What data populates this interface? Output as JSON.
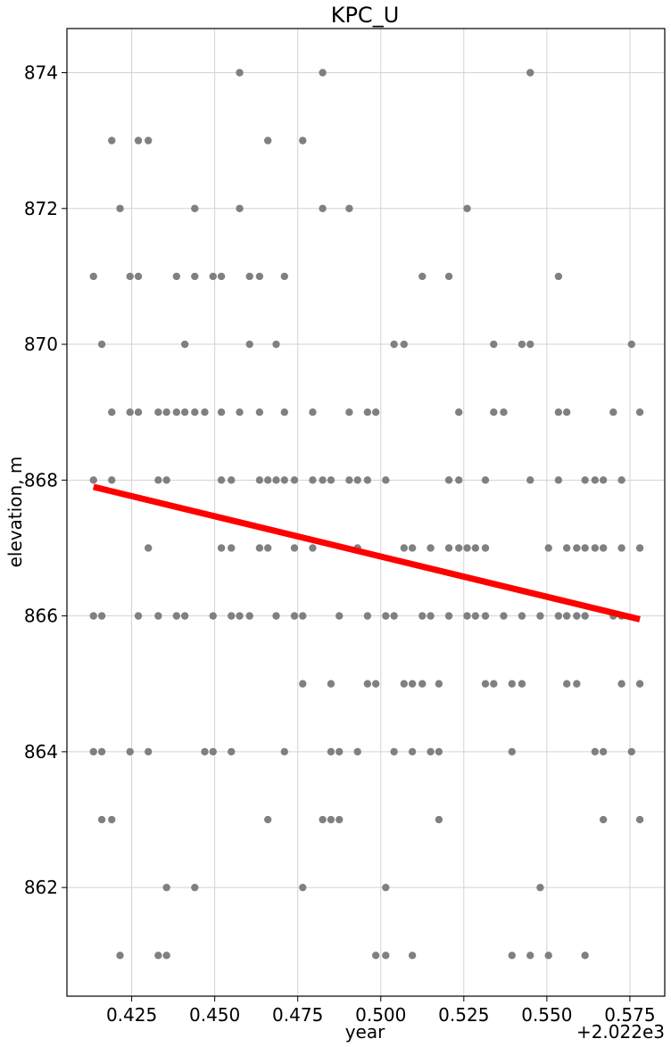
{
  "chart_data": {
    "type": "scatter",
    "title": "KPC_U",
    "xlabel": "year",
    "ylabel": "elevation, m",
    "x_offset_label": "+2.022e3",
    "x_offset": 2022,
    "xlim": [
      2022.4055,
      2022.5855
    ],
    "ylim": [
      860.4,
      874.65
    ],
    "xticks": [
      2022.425,
      2022.45,
      2022.475,
      2022.5,
      2022.525,
      2022.55,
      2022.575
    ],
    "xtick_labels": [
      "0.425",
      "0.450",
      "0.475",
      "0.500",
      "0.525",
      "0.550",
      "0.575"
    ],
    "yticks": [
      862,
      864,
      866,
      868,
      870,
      872,
      874
    ],
    "ytick_labels": [
      "862",
      "864",
      "866",
      "868",
      "870",
      "872",
      "874"
    ],
    "grid": true,
    "legend": "none",
    "colors": {
      "points": "#808080",
      "trend": "#ff0000",
      "grid": "#d3d3d3",
      "axes": "#000000"
    },
    "series": [
      {
        "type": "scatter",
        "points": [
          [
            2022.4135,
            871
          ],
          [
            2022.4135,
            868
          ],
          [
            2022.4135,
            866
          ],
          [
            2022.4135,
            864
          ],
          [
            2022.416,
            870
          ],
          [
            2022.416,
            866
          ],
          [
            2022.416,
            864
          ],
          [
            2022.416,
            863
          ],
          [
            2022.419,
            873
          ],
          [
            2022.419,
            869
          ],
          [
            2022.419,
            868
          ],
          [
            2022.419,
            863
          ],
          [
            2022.4215,
            872
          ],
          [
            2022.4215,
            861
          ],
          [
            2022.4245,
            871
          ],
          [
            2022.4245,
            869
          ],
          [
            2022.4245,
            864
          ],
          [
            2022.427,
            873
          ],
          [
            2022.427,
            871
          ],
          [
            2022.427,
            869
          ],
          [
            2022.427,
            866
          ],
          [
            2022.43,
            873
          ],
          [
            2022.43,
            867
          ],
          [
            2022.43,
            864
          ],
          [
            2022.433,
            869
          ],
          [
            2022.433,
            868
          ],
          [
            2022.433,
            866
          ],
          [
            2022.433,
            861
          ],
          [
            2022.4355,
            869
          ],
          [
            2022.4355,
            868
          ],
          [
            2022.4355,
            862
          ],
          [
            2022.4355,
            861
          ],
          [
            2022.4385,
            871
          ],
          [
            2022.4385,
            869
          ],
          [
            2022.4385,
            866
          ],
          [
            2022.441,
            870
          ],
          [
            2022.441,
            869
          ],
          [
            2022.441,
            866
          ],
          [
            2022.444,
            872
          ],
          [
            2022.444,
            871
          ],
          [
            2022.444,
            869
          ],
          [
            2022.444,
            862
          ],
          [
            2022.447,
            869
          ],
          [
            2022.447,
            864
          ],
          [
            2022.4495,
            871
          ],
          [
            2022.4495,
            866
          ],
          [
            2022.4495,
            864
          ],
          [
            2022.452,
            871
          ],
          [
            2022.452,
            869
          ],
          [
            2022.452,
            868
          ],
          [
            2022.452,
            867
          ],
          [
            2022.455,
            868
          ],
          [
            2022.455,
            867
          ],
          [
            2022.455,
            866
          ],
          [
            2022.455,
            864
          ],
          [
            2022.4575,
            874
          ],
          [
            2022.4575,
            872
          ],
          [
            2022.4575,
            869
          ],
          [
            2022.4575,
            866
          ],
          [
            2022.4605,
            871
          ],
          [
            2022.4605,
            870
          ],
          [
            2022.4605,
            866
          ],
          [
            2022.4635,
            871
          ],
          [
            2022.4635,
            869
          ],
          [
            2022.4635,
            868
          ],
          [
            2022.4635,
            867
          ],
          [
            2022.466,
            873
          ],
          [
            2022.466,
            868
          ],
          [
            2022.466,
            867
          ],
          [
            2022.466,
            863
          ],
          [
            2022.4685,
            870
          ],
          [
            2022.4685,
            868
          ],
          [
            2022.4685,
            866
          ],
          [
            2022.471,
            871
          ],
          [
            2022.471,
            869
          ],
          [
            2022.471,
            868
          ],
          [
            2022.471,
            864
          ],
          [
            2022.474,
            868
          ],
          [
            2022.474,
            867
          ],
          [
            2022.474,
            866
          ],
          [
            2022.4765,
            873
          ],
          [
            2022.4765,
            866
          ],
          [
            2022.4765,
            865
          ],
          [
            2022.4765,
            862
          ],
          [
            2022.4795,
            869
          ],
          [
            2022.4795,
            868
          ],
          [
            2022.4795,
            867
          ],
          [
            2022.4825,
            874
          ],
          [
            2022.4825,
            872
          ],
          [
            2022.4825,
            868
          ],
          [
            2022.4825,
            863
          ],
          [
            2022.485,
            868
          ],
          [
            2022.485,
            865
          ],
          [
            2022.485,
            864
          ],
          [
            2022.485,
            863
          ],
          [
            2022.4875,
            866
          ],
          [
            2022.4875,
            864
          ],
          [
            2022.4875,
            863
          ],
          [
            2022.4905,
            872
          ],
          [
            2022.4905,
            869
          ],
          [
            2022.4905,
            868
          ],
          [
            2022.493,
            868
          ],
          [
            2022.493,
            867
          ],
          [
            2022.493,
            864
          ],
          [
            2022.496,
            869
          ],
          [
            2022.496,
            868
          ],
          [
            2022.496,
            866
          ],
          [
            2022.496,
            865
          ],
          [
            2022.4985,
            869
          ],
          [
            2022.4985,
            865
          ],
          [
            2022.4985,
            861
          ],
          [
            2022.5015,
            868
          ],
          [
            2022.5015,
            866
          ],
          [
            2022.5015,
            862
          ],
          [
            2022.5015,
            861
          ],
          [
            2022.504,
            870
          ],
          [
            2022.504,
            866
          ],
          [
            2022.504,
            864
          ],
          [
            2022.507,
            870
          ],
          [
            2022.507,
            867
          ],
          [
            2022.507,
            865
          ],
          [
            2022.5095,
            867
          ],
          [
            2022.5095,
            865
          ],
          [
            2022.5095,
            864
          ],
          [
            2022.5095,
            861
          ],
          [
            2022.5125,
            871
          ],
          [
            2022.5125,
            866
          ],
          [
            2022.5125,
            865
          ],
          [
            2022.515,
            867
          ],
          [
            2022.515,
            866
          ],
          [
            2022.515,
            864
          ],
          [
            2022.5175,
            865
          ],
          [
            2022.5175,
            864
          ],
          [
            2022.5175,
            863
          ],
          [
            2022.5205,
            871
          ],
          [
            2022.5205,
            868
          ],
          [
            2022.5205,
            867
          ],
          [
            2022.5205,
            866
          ],
          [
            2022.5235,
            869
          ],
          [
            2022.5235,
            868
          ],
          [
            2022.5235,
            867
          ],
          [
            2022.526,
            872
          ],
          [
            2022.526,
            867
          ],
          [
            2022.526,
            866
          ],
          [
            2022.5285,
            867
          ],
          [
            2022.5285,
            866
          ],
          [
            2022.5315,
            868
          ],
          [
            2022.5315,
            867
          ],
          [
            2022.5315,
            866
          ],
          [
            2022.5315,
            865
          ],
          [
            2022.534,
            870
          ],
          [
            2022.534,
            869
          ],
          [
            2022.534,
            865
          ],
          [
            2022.537,
            869
          ],
          [
            2022.537,
            866
          ],
          [
            2022.5395,
            865
          ],
          [
            2022.5395,
            864
          ],
          [
            2022.5395,
            861
          ],
          [
            2022.5425,
            870
          ],
          [
            2022.5425,
            866
          ],
          [
            2022.5425,
            865
          ],
          [
            2022.545,
            874
          ],
          [
            2022.545,
            870
          ],
          [
            2022.545,
            868
          ],
          [
            2022.545,
            861
          ],
          [
            2022.548,
            866
          ],
          [
            2022.548,
            862
          ],
          [
            2022.5505,
            867
          ],
          [
            2022.5505,
            861
          ],
          [
            2022.5535,
            871
          ],
          [
            2022.5535,
            869
          ],
          [
            2022.5535,
            868
          ],
          [
            2022.5535,
            866
          ],
          [
            2022.556,
            869
          ],
          [
            2022.556,
            867
          ],
          [
            2022.556,
            866
          ],
          [
            2022.556,
            865
          ],
          [
            2022.559,
            867
          ],
          [
            2022.559,
            866
          ],
          [
            2022.559,
            865
          ],
          [
            2022.5615,
            868
          ],
          [
            2022.5615,
            867
          ],
          [
            2022.5615,
            866
          ],
          [
            2022.5615,
            861
          ],
          [
            2022.5645,
            868
          ],
          [
            2022.5645,
            867
          ],
          [
            2022.5645,
            864
          ],
          [
            2022.567,
            868
          ],
          [
            2022.567,
            867
          ],
          [
            2022.567,
            864
          ],
          [
            2022.567,
            863
          ],
          [
            2022.57,
            869
          ],
          [
            2022.57,
            866
          ],
          [
            2022.5725,
            868
          ],
          [
            2022.5725,
            867
          ],
          [
            2022.5725,
            866
          ],
          [
            2022.5725,
            865
          ],
          [
            2022.5755,
            870
          ],
          [
            2022.5755,
            864
          ],
          [
            2022.578,
            869
          ],
          [
            2022.578,
            867
          ],
          [
            2022.578,
            865
          ],
          [
            2022.578,
            863
          ]
        ]
      },
      {
        "type": "line",
        "points": [
          [
            2022.4135,
            867.9
          ],
          [
            2022.578,
            865.95
          ]
        ]
      }
    ]
  }
}
